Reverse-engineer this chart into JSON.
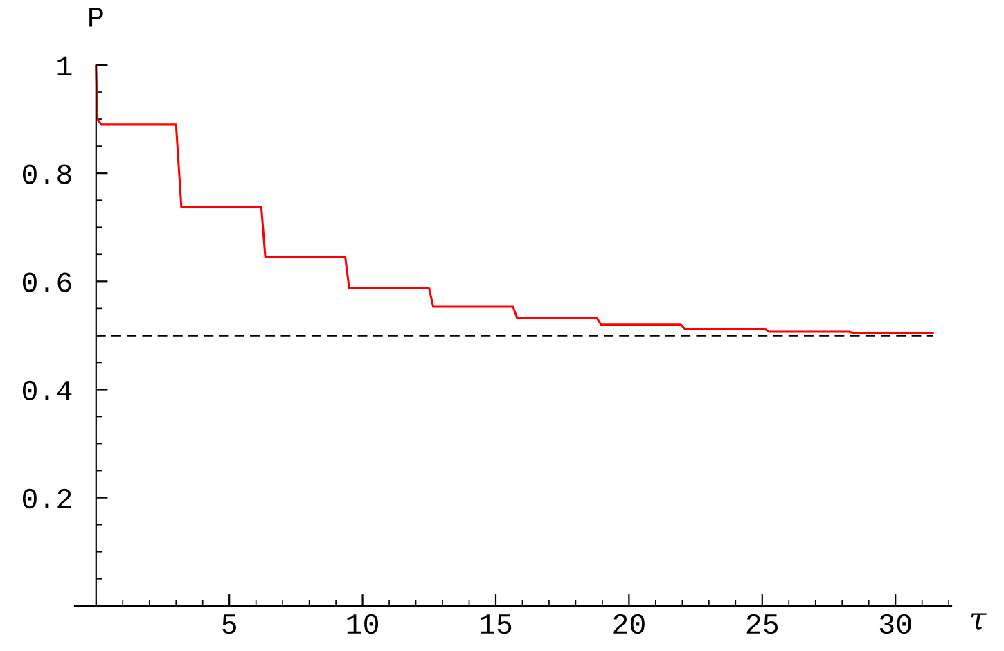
{
  "chart_data": {
    "type": "line",
    "xlabel": "τ",
    "ylabel": "P",
    "x": [
      0,
      0.05,
      0.2,
      3.0,
      3.2,
      6.2,
      6.35,
      9.35,
      9.5,
      12.5,
      12.65,
      15.65,
      15.8,
      18.8,
      18.95,
      21.95,
      22.1,
      25.1,
      25.25,
      28.25,
      28.4,
      31.4
    ],
    "series": [
      {
        "color": "#ff0000",
        "values": [
          1,
          0.9,
          0.89,
          0.89,
          0.737,
          0.737,
          0.645,
          0.645,
          0.587,
          0.587,
          0.553,
          0.553,
          0.532,
          0.532,
          0.52,
          0.52,
          0.512,
          0.512,
          0.507,
          0.507,
          0.505,
          0.505
        ]
      }
    ],
    "ref_lines": [
      {
        "axis": "y",
        "value": 0.5,
        "color": "#000000",
        "line_style": "dashed"
      }
    ],
    "xlim": [
      -0.8,
      32.1
    ],
    "ylim": [
      0,
      1
    ],
    "xticks": [
      5,
      10,
      15,
      20,
      25,
      30
    ],
    "yticks": [
      0.2,
      0.4,
      0.6,
      0.8,
      1
    ],
    "grid": false,
    "legend": false
  }
}
